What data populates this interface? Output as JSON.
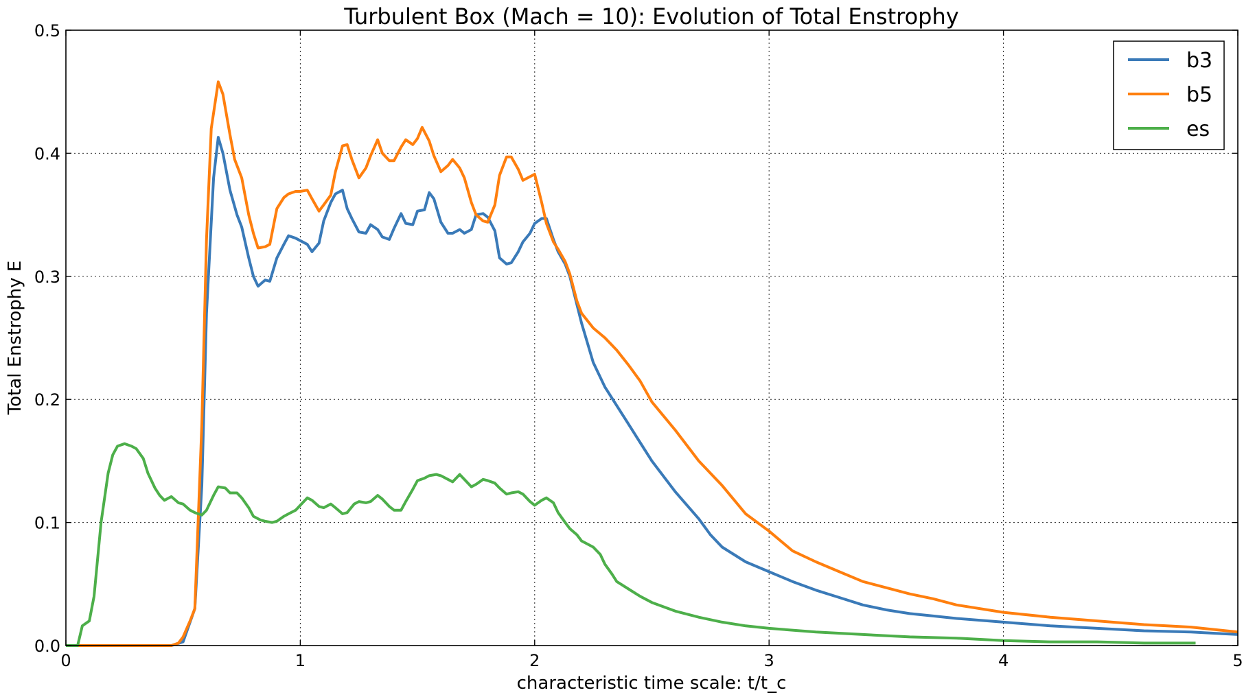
{
  "chart_data": {
    "type": "line",
    "title": "Turbulent Box (Mach = 10): Evolution of Total Enstrophy",
    "xlabel": "characteristic time scale: t/t_c",
    "ylabel": "Total Enstrophy E",
    "xlim": [
      0,
      5
    ],
    "ylim": [
      0,
      0.5
    ],
    "xticks": [
      0,
      1,
      2,
      3,
      4,
      5
    ],
    "xtick_labels": [
      "0",
      "1",
      "2",
      "3",
      "4",
      "5"
    ],
    "yticks": [
      0.0,
      0.1,
      0.2,
      0.3,
      0.4,
      0.5
    ],
    "ytick_labels": [
      "0.0",
      "0.1",
      "0.2",
      "0.3",
      "0.4",
      "0.5"
    ],
    "grid": true,
    "legend_position": "top-right",
    "series": [
      {
        "name": "b3",
        "color": "#3a7ab8",
        "x": [
          0,
          0.45,
          0.5,
          0.55,
          0.58,
          0.6,
          0.63,
          0.65,
          0.67,
          0.7,
          0.73,
          0.75,
          0.78,
          0.8,
          0.82,
          0.85,
          0.87,
          0.9,
          0.93,
          0.95,
          0.98,
          1.0,
          1.03,
          1.05,
          1.08,
          1.1,
          1.13,
          1.15,
          1.18,
          1.2,
          1.22,
          1.25,
          1.28,
          1.3,
          1.33,
          1.35,
          1.38,
          1.4,
          1.43,
          1.45,
          1.48,
          1.5,
          1.53,
          1.55,
          1.57,
          1.6,
          1.63,
          1.65,
          1.68,
          1.7,
          1.73,
          1.75,
          1.78,
          1.8,
          1.83,
          1.85,
          1.88,
          1.9,
          1.93,
          1.95,
          1.98,
          2.0,
          2.03,
          2.05,
          2.08,
          2.1,
          2.13,
          2.15,
          2.2,
          2.25,
          2.3,
          2.35,
          2.4,
          2.45,
          2.5,
          2.6,
          2.7,
          2.75,
          2.8,
          2.9,
          3.0,
          3.1,
          3.2,
          3.3,
          3.4,
          3.5,
          3.6,
          3.7,
          3.8,
          4.0,
          4.2,
          4.4,
          4.6,
          4.8,
          5.0
        ],
        "values": [
          0,
          0,
          0.003,
          0.03,
          0.13,
          0.27,
          0.38,
          0.413,
          0.4,
          0.37,
          0.35,
          0.34,
          0.315,
          0.3,
          0.292,
          0.297,
          0.296,
          0.315,
          0.326,
          0.333,
          0.331,
          0.329,
          0.326,
          0.32,
          0.327,
          0.345,
          0.36,
          0.367,
          0.37,
          0.355,
          0.347,
          0.336,
          0.335,
          0.342,
          0.338,
          0.332,
          0.33,
          0.339,
          0.351,
          0.343,
          0.342,
          0.353,
          0.354,
          0.368,
          0.363,
          0.344,
          0.335,
          0.335,
          0.338,
          0.335,
          0.338,
          0.35,
          0.351,
          0.348,
          0.337,
          0.315,
          0.31,
          0.311,
          0.32,
          0.328,
          0.335,
          0.343,
          0.347,
          0.347,
          0.33,
          0.32,
          0.31,
          0.3,
          0.262,
          0.23,
          0.21,
          0.195,
          0.18,
          0.165,
          0.15,
          0.125,
          0.103,
          0.09,
          0.08,
          0.068,
          0.06,
          0.052,
          0.045,
          0.039,
          0.033,
          0.029,
          0.026,
          0.024,
          0.022,
          0.019,
          0.016,
          0.014,
          0.012,
          0.011,
          0.009
        ]
      },
      {
        "name": "b5",
        "color": "#ff7f0e",
        "x": [
          0,
          0.4,
          0.45,
          0.48,
          0.5,
          0.53,
          0.55,
          0.58,
          0.6,
          0.62,
          0.65,
          0.67,
          0.7,
          0.72,
          0.75,
          0.78,
          0.8,
          0.82,
          0.85,
          0.87,
          0.9,
          0.93,
          0.95,
          0.98,
          1.0,
          1.03,
          1.05,
          1.08,
          1.1,
          1.13,
          1.15,
          1.18,
          1.2,
          1.22,
          1.25,
          1.28,
          1.3,
          1.33,
          1.35,
          1.38,
          1.4,
          1.43,
          1.45,
          1.48,
          1.5,
          1.52,
          1.55,
          1.57,
          1.6,
          1.63,
          1.65,
          1.68,
          1.7,
          1.73,
          1.75,
          1.78,
          1.8,
          1.83,
          1.85,
          1.88,
          1.9,
          1.93,
          1.95,
          1.98,
          2.0,
          2.03,
          2.05,
          2.08,
          2.1,
          2.13,
          2.15,
          2.18,
          2.2,
          2.25,
          2.3,
          2.35,
          2.4,
          2.45,
          2.5,
          2.6,
          2.7,
          2.8,
          2.9,
          3.0,
          3.1,
          3.2,
          3.3,
          3.4,
          3.5,
          3.6,
          3.7,
          3.8,
          4.0,
          4.2,
          4.4,
          4.6,
          4.8,
          5.0
        ],
        "values": [
          0,
          0,
          0.0,
          0.002,
          0.007,
          0.02,
          0.03,
          0.18,
          0.33,
          0.42,
          0.458,
          0.448,
          0.415,
          0.395,
          0.38,
          0.35,
          0.335,
          0.323,
          0.324,
          0.326,
          0.355,
          0.364,
          0.367,
          0.369,
          0.369,
          0.37,
          0.363,
          0.353,
          0.358,
          0.366,
          0.385,
          0.406,
          0.407,
          0.395,
          0.38,
          0.388,
          0.398,
          0.411,
          0.4,
          0.394,
          0.394,
          0.405,
          0.411,
          0.407,
          0.412,
          0.421,
          0.41,
          0.398,
          0.385,
          0.39,
          0.395,
          0.388,
          0.38,
          0.36,
          0.35,
          0.345,
          0.344,
          0.358,
          0.382,
          0.397,
          0.397,
          0.387,
          0.378,
          0.381,
          0.383,
          0.36,
          0.343,
          0.328,
          0.322,
          0.312,
          0.302,
          0.28,
          0.27,
          0.258,
          0.25,
          0.24,
          0.228,
          0.215,
          0.198,
          0.175,
          0.15,
          0.13,
          0.107,
          0.093,
          0.077,
          0.068,
          0.06,
          0.052,
          0.047,
          0.042,
          0.038,
          0.033,
          0.027,
          0.023,
          0.02,
          0.017,
          0.015,
          0.011
        ]
      },
      {
        "name": "es",
        "color": "#4daf4a",
        "x": [
          0,
          0.05,
          0.07,
          0.1,
          0.12,
          0.15,
          0.18,
          0.2,
          0.22,
          0.25,
          0.28,
          0.3,
          0.33,
          0.35,
          0.38,
          0.4,
          0.42,
          0.45,
          0.48,
          0.5,
          0.53,
          0.55,
          0.58,
          0.6,
          0.63,
          0.65,
          0.68,
          0.7,
          0.73,
          0.75,
          0.78,
          0.8,
          0.83,
          0.85,
          0.88,
          0.9,
          0.93,
          0.95,
          0.98,
          1.0,
          1.03,
          1.05,
          1.08,
          1.1,
          1.13,
          1.15,
          1.18,
          1.2,
          1.23,
          1.25,
          1.28,
          1.3,
          1.33,
          1.35,
          1.38,
          1.4,
          1.43,
          1.45,
          1.48,
          1.5,
          1.53,
          1.55,
          1.58,
          1.6,
          1.63,
          1.65,
          1.68,
          1.7,
          1.73,
          1.75,
          1.78,
          1.8,
          1.83,
          1.85,
          1.88,
          1.9,
          1.93,
          1.95,
          1.98,
          2.0,
          2.03,
          2.05,
          2.08,
          2.1,
          2.13,
          2.15,
          2.18,
          2.2,
          2.23,
          2.25,
          2.28,
          2.3,
          2.33,
          2.35,
          2.4,
          2.45,
          2.5,
          2.6,
          2.7,
          2.8,
          2.9,
          3.0,
          3.2,
          3.4,
          3.6,
          3.8,
          4.0,
          4.2,
          4.4,
          4.6,
          4.82
        ],
        "values": [
          0,
          0.0,
          0.016,
          0.02,
          0.04,
          0.1,
          0.14,
          0.155,
          0.162,
          0.164,
          0.162,
          0.16,
          0.152,
          0.14,
          0.128,
          0.122,
          0.118,
          0.121,
          0.116,
          0.115,
          0.11,
          0.108,
          0.106,
          0.11,
          0.122,
          0.129,
          0.128,
          0.124,
          0.124,
          0.12,
          0.112,
          0.105,
          0.102,
          0.101,
          0.1,
          0.101,
          0.105,
          0.107,
          0.11,
          0.114,
          0.12,
          0.118,
          0.113,
          0.112,
          0.115,
          0.112,
          0.107,
          0.108,
          0.115,
          0.117,
          0.116,
          0.117,
          0.122,
          0.119,
          0.113,
          0.11,
          0.11,
          0.117,
          0.127,
          0.134,
          0.136,
          0.138,
          0.139,
          0.138,
          0.135,
          0.133,
          0.139,
          0.135,
          0.129,
          0.131,
          0.135,
          0.134,
          0.132,
          0.128,
          0.123,
          0.124,
          0.125,
          0.123,
          0.117,
          0.114,
          0.118,
          0.12,
          0.116,
          0.108,
          0.1,
          0.095,
          0.09,
          0.085,
          0.082,
          0.08,
          0.074,
          0.066,
          0.058,
          0.052,
          0.046,
          0.04,
          0.035,
          0.028,
          0.023,
          0.019,
          0.016,
          0.014,
          0.011,
          0.009,
          0.007,
          0.006,
          0.004,
          0.003,
          0.003,
          0.002,
          0.002
        ]
      }
    ]
  }
}
